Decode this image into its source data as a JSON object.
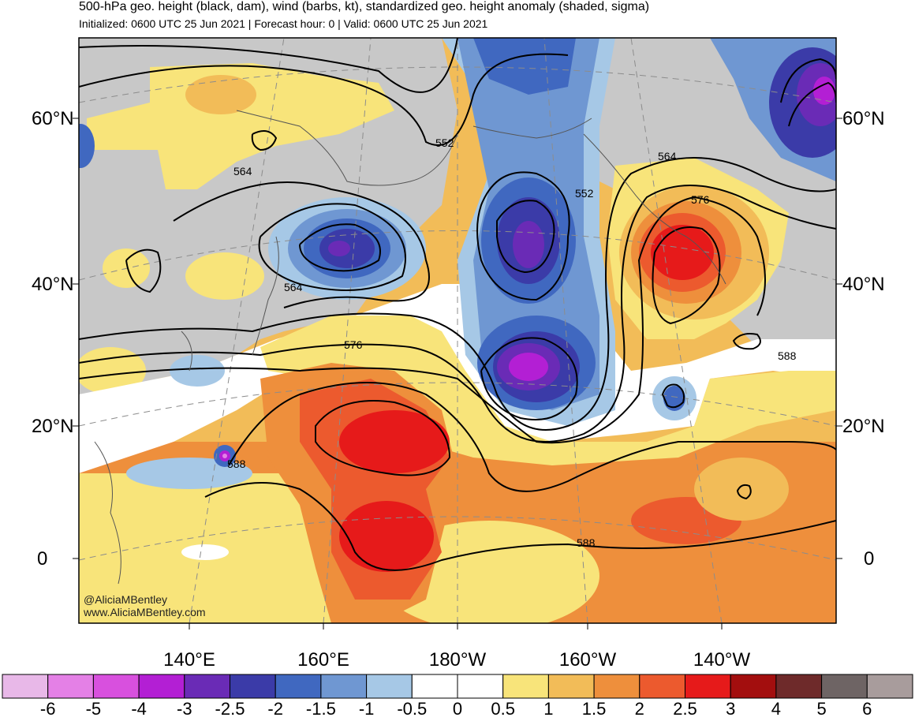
{
  "header": {
    "title": "500-hPa geo. height (black, dam), wind (barbs, kt), standardized geo. height anomaly (shaded, sigma)",
    "subtitle": "Initialized: 0600 UTC 25 Jun 2021 | Forecast hour: 0 | Valid: 0600 UTC 25 Jun 2021"
  },
  "map": {
    "lat_labels": [
      "60°N",
      "40°N",
      "20°N",
      "0"
    ],
    "lon_labels": [
      "140°E",
      "160°E",
      "180°W",
      "160°W",
      "140°W"
    ],
    "contour_labels": [
      "552",
      "564",
      "552",
      "564",
      "576",
      "564",
      "576",
      "588",
      "588",
      "588"
    ],
    "credit_handle": "@AliciaMBentley",
    "credit_site": "www.AliciaMBentley.com"
  },
  "colorbar": {
    "labels": [
      "-6",
      "-5",
      "-4",
      "-3",
      "-2.5",
      "-2",
      "-1.5",
      "-1",
      "-0.5",
      "0",
      "0.5",
      "1",
      "1.5",
      "2",
      "2.5",
      "3",
      "4",
      "5",
      "6"
    ],
    "colors": [
      "#e8b8e8",
      "#e480e6",
      "#d850de",
      "#b31fd4",
      "#6a2bb6",
      "#3b3ba8",
      "#4068c0",
      "#6f97d2",
      "#a6c8e6",
      "#ffffff",
      "#ffffff",
      "#f8e47a",
      "#f2bc58",
      "#ee8f3c",
      "#ec5a2e",
      "#e61a1a",
      "#a30e0e",
      "#6e2a2a",
      "#6e6464",
      "#a89c9c"
    ]
  },
  "colors": {
    "land": "#c8c8c8",
    "ocean_neutral": "#ffffff",
    "contour": "#000000"
  }
}
